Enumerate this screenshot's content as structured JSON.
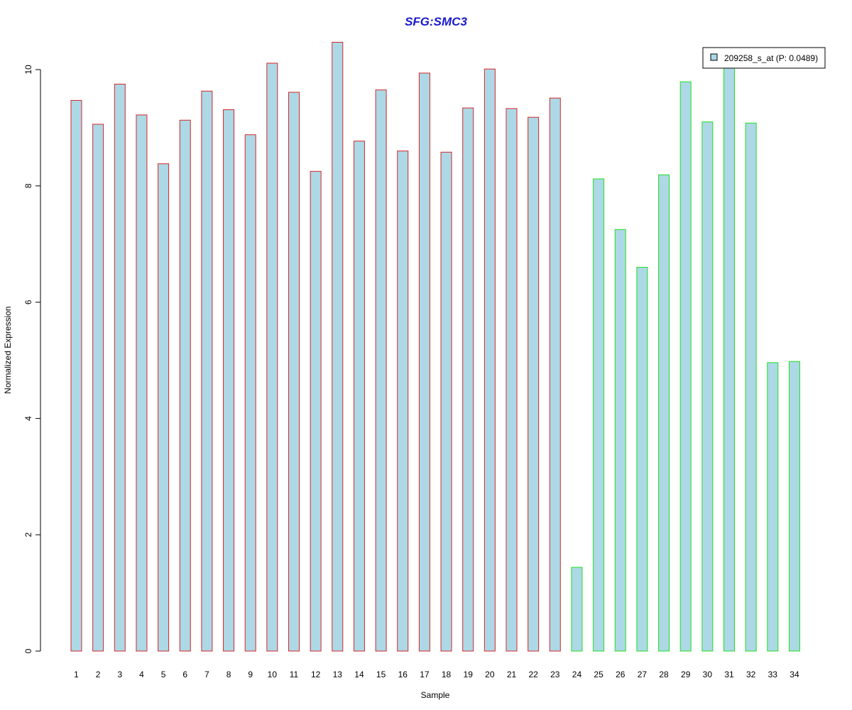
{
  "chart_data": {
    "type": "bar",
    "title": "SFG:SMC3",
    "xlabel": "Sample",
    "ylabel": "Normalized Expression",
    "categories": [
      "1",
      "2",
      "3",
      "4",
      "5",
      "6",
      "7",
      "8",
      "9",
      "10",
      "11",
      "12",
      "13",
      "14",
      "15",
      "16",
      "17",
      "18",
      "19",
      "20",
      "21",
      "22",
      "23",
      "24",
      "25",
      "26",
      "27",
      "28",
      "29",
      "30",
      "31",
      "32",
      "33",
      "34"
    ],
    "series": [
      {
        "name": "209258_s_at (P: 0.0489)",
        "values": [
          9.47,
          9.06,
          9.75,
          9.22,
          8.38,
          9.13,
          9.63,
          9.31,
          8.88,
          10.11,
          9.61,
          8.25,
          10.47,
          8.77,
          9.65,
          8.6,
          9.94,
          8.58,
          9.34,
          10.01,
          9.33,
          9.18,
          9.51,
          1.44,
          8.12,
          7.25,
          6.6,
          8.19,
          9.79,
          9.1,
          10.11,
          9.08,
          4.96,
          4.98
        ]
      }
    ],
    "ylim": [
      0,
      10.47
    ],
    "yticks": [
      0,
      2,
      4,
      6,
      8,
      10
    ],
    "group_border_colors": [
      "#d62728",
      "#1ee01e"
    ],
    "group_sizes": [
      23,
      11
    ],
    "bar_fill": "#add8e6",
    "title_color": "#1a1acd",
    "legend_placement": "top-right",
    "grid": false
  }
}
